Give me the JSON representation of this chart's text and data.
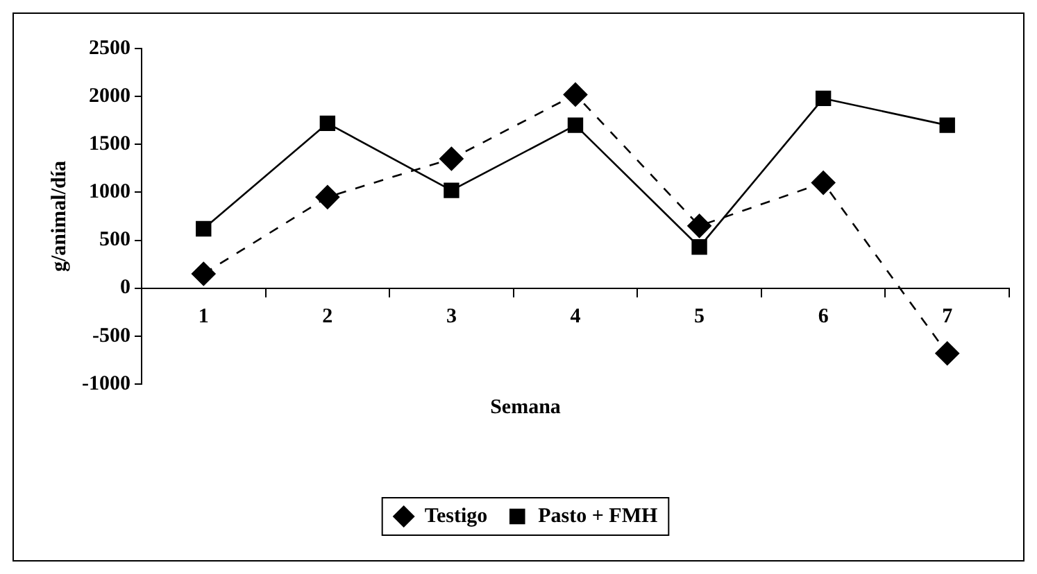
{
  "chart_data": {
    "type": "line",
    "xlabel": "Semana",
    "ylabel": "g/animal/día",
    "categories": [
      "1",
      "2",
      "3",
      "4",
      "5",
      "6",
      "7"
    ],
    "series": [
      {
        "name": "Testigo",
        "color": "#000000",
        "marker": "diamond",
        "line_style": "dashed",
        "values": [
          150,
          950,
          1350,
          2020,
          650,
          1100,
          -680
        ]
      },
      {
        "name": "Pasto + FMH",
        "color": "#000000",
        "marker": "square",
        "line_style": "solid",
        "values": [
          620,
          1720,
          1020,
          1700,
          430,
          1980,
          1700
        ]
      }
    ],
    "ylim": [
      -1000,
      2500
    ],
    "yticks": [
      -1000,
      -500,
      0,
      500,
      1000,
      1500,
      2000,
      2500
    ],
    "grid": false,
    "legend": "bottom"
  }
}
